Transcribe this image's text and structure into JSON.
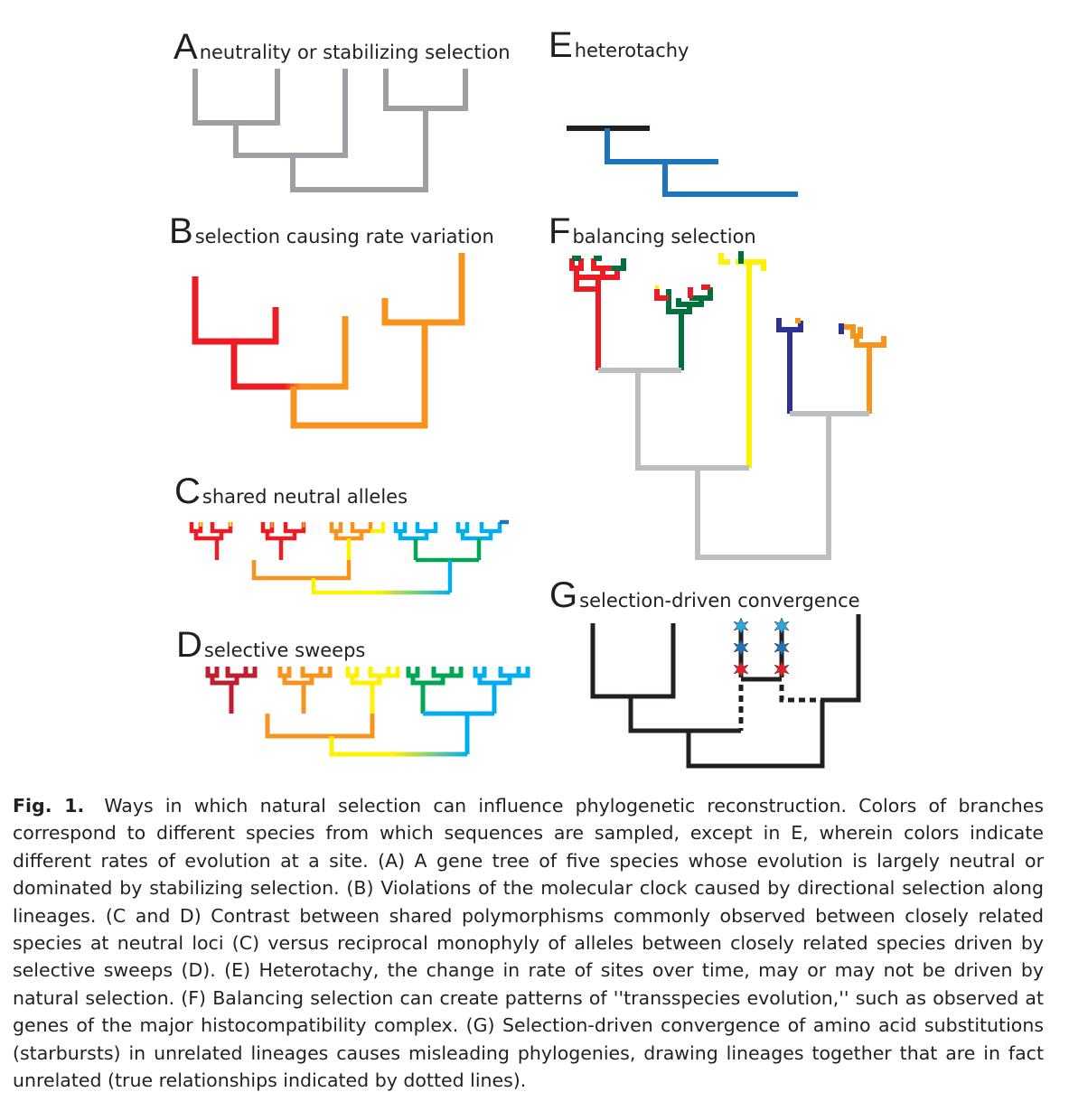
{
  "panels": {
    "A": {
      "letter": "A",
      "title": "neutrality or stabilizing selection"
    },
    "B": {
      "letter": "B",
      "title": "selection causing rate variation"
    },
    "C": {
      "letter": "C",
      "title": "shared neutral alleles"
    },
    "D": {
      "letter": "D",
      "title": "selective sweeps"
    },
    "E": {
      "letter": "E",
      "title": "heterotachy"
    },
    "F": {
      "letter": "F",
      "title": "balancing selection"
    },
    "G": {
      "letter": "G",
      "title": "selection-driven convergence"
    }
  },
  "colors": {
    "neutral_gray": "#9d9fa2",
    "red": "#ec1c24",
    "orange": "#f7941d",
    "yellow": "#fff200",
    "green": "#00a651",
    "blue": "#00aeef",
    "dark_red": "#be1e2d",
    "dark_green": "#00703c",
    "dark_blue": "#2e3192",
    "mid_blue": "#1c75bc",
    "light_gray": "#bcbec0",
    "black": "#231f20",
    "starburst_cyan": "#27aae1",
    "starburst_blue": "#1c75bc",
    "starburst_red": "#ec1c24"
  },
  "caption": {
    "label": "Fig. 1.",
    "text": "Ways in which natural selection can influence phylogenetic reconstruction. Colors of branches correspond to different species from which sequences are sampled, except in E, wherein colors indicate different rates of evolution at a site. (A) A gene tree of five species whose evolution is largely neutral or dominated by stabilizing selection. (B) Violations of the molecular clock caused by directional selection along lineages. (C and D) Contrast between shared polymorphisms commonly observed between closely related species at neutral loci (C) versus reciprocal monophyly of alleles between closely related species driven by selective sweeps (D). (E) Heterotachy, the change in rate of sites over time, may or may not be driven by natural selection. (F) Balancing selection can create patterns of ''transspecies evolution,'' such as observed at genes of the major histocompatibility complex. (G) Selection-driven convergence of amino acid substitutions (starbursts) in unrelated lineages causes misleading phylogenies, drawing lineages together that are in fact unrelated (true relationships indicated by dotted lines)."
  }
}
